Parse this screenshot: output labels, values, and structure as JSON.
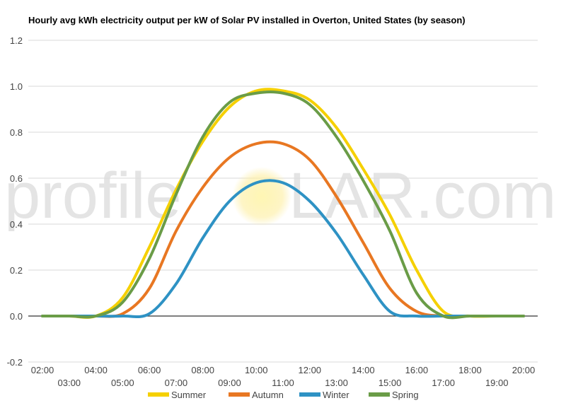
{
  "watermark": {
    "left": "profile",
    "right": "LAR.com"
  },
  "chart_data": {
    "type": "line",
    "title": "Hourly avg kWh electricity output per kW of Solar PV installed in Overton, United States (by season)",
    "xlabel": "",
    "ylabel": "",
    "ylim": [
      -0.2,
      1.2
    ],
    "y_ticks": [
      "-0.2",
      "0.0",
      "0.2",
      "0.4",
      "0.6",
      "0.8",
      "1.0",
      "1.2"
    ],
    "x_ticks_upper": [
      "02:00",
      "04:00",
      "06:00",
      "08:00",
      "10:00",
      "12:00",
      "14:00",
      "16:00",
      "18:00",
      "20:00"
    ],
    "x_ticks_lower": [
      "03:00",
      "05:00",
      "07:00",
      "09:00",
      "11:00",
      "13:00",
      "15:00",
      "17:00",
      "19:00"
    ],
    "x": [
      "02:00",
      "03:00",
      "04:00",
      "05:00",
      "06:00",
      "07:00",
      "08:00",
      "09:00",
      "10:00",
      "11:00",
      "12:00",
      "13:00",
      "14:00",
      "15:00",
      "16:00",
      "17:00",
      "18:00",
      "19:00",
      "20:00"
    ],
    "grid": true,
    "legend": "bottom",
    "series": [
      {
        "name": "Summer",
        "color": "#f5d000",
        "values": [
          0.0,
          0.0,
          0.0,
          0.08,
          0.3,
          0.55,
          0.76,
          0.91,
          0.98,
          0.98,
          0.94,
          0.82,
          0.64,
          0.44,
          0.2,
          0.02,
          0.0,
          0.0,
          0.0
        ]
      },
      {
        "name": "Autumn",
        "color": "#e87722",
        "values": [
          0.0,
          0.0,
          0.0,
          0.01,
          0.12,
          0.37,
          0.56,
          0.69,
          0.75,
          0.75,
          0.68,
          0.52,
          0.32,
          0.12,
          0.02,
          0.0,
          0.0,
          0.0,
          0.0
        ]
      },
      {
        "name": "Winter",
        "color": "#2e92c4",
        "values": [
          0.0,
          0.0,
          0.0,
          0.0,
          0.01,
          0.14,
          0.34,
          0.5,
          0.58,
          0.58,
          0.5,
          0.36,
          0.18,
          0.02,
          0.0,
          0.0,
          0.0,
          0.0,
          0.0
        ]
      },
      {
        "name": "Spring",
        "color": "#6a9c47",
        "values": [
          0.0,
          0.0,
          0.0,
          0.06,
          0.25,
          0.53,
          0.78,
          0.93,
          0.97,
          0.97,
          0.92,
          0.78,
          0.59,
          0.37,
          0.1,
          0.0,
          0.0,
          0.0,
          0.0
        ]
      }
    ]
  }
}
